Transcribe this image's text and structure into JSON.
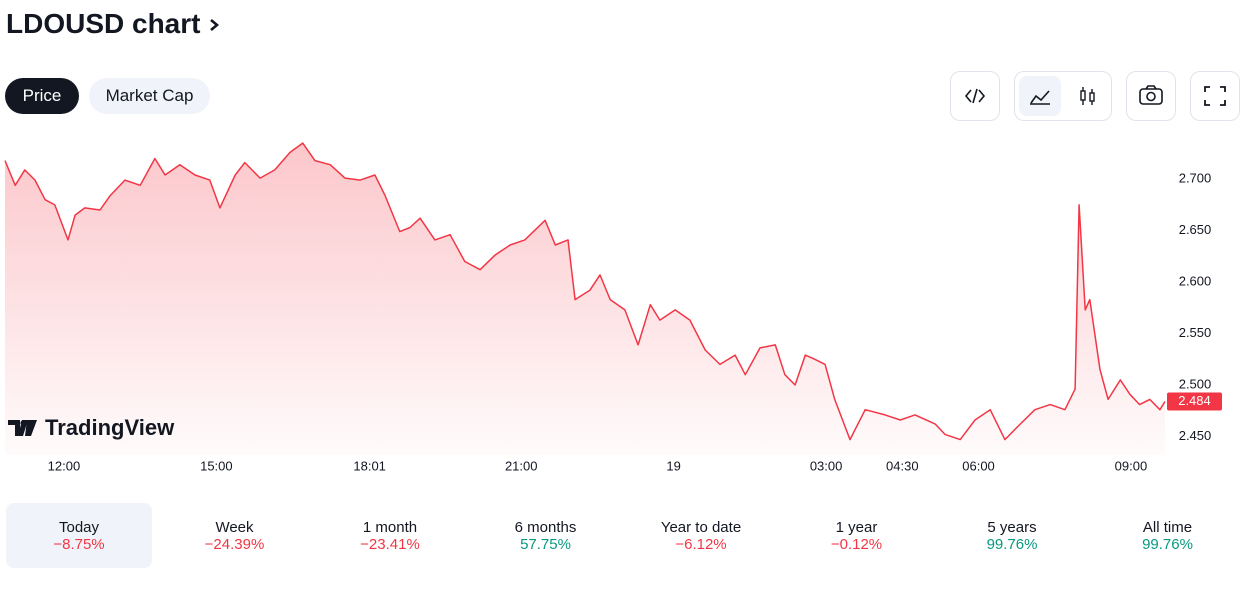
{
  "header": {
    "title": "LDOUSD chart"
  },
  "tabs": [
    {
      "label": "Price",
      "active": true
    },
    {
      "label": "Market Cap",
      "active": false
    }
  ],
  "chart_data": {
    "type": "area",
    "color": "#f23645",
    "watermark": "TradingView",
    "x": [
      10.84,
      11.04,
      11.23,
      11.43,
      11.63,
      11.82,
      12.08,
      12.22,
      12.41,
      12.71,
      12.91,
      13.2,
      13.5,
      13.79,
      13.99,
      14.28,
      14.58,
      14.87,
      15.07,
      15.37,
      15.56,
      15.86,
      16.15,
      16.45,
      16.7,
      16.94,
      17.24,
      17.53,
      17.83,
      18.12,
      18.32,
      18.61,
      18.81,
      19.01,
      19.3,
      19.6,
      19.89,
      20.19,
      20.48,
      20.78,
      21.07,
      21.47,
      21.67,
      21.92,
      22.06,
      22.35,
      22.55,
      22.75,
      23.04,
      23.3,
      23.54,
      23.73,
      24.03,
      24.32,
      24.62,
      24.91,
      25.21,
      25.41,
      25.7,
      26.0,
      26.19,
      26.39,
      26.59,
      26.78,
      26.98,
      27.17,
      27.47,
      27.77,
      28.16,
      28.46,
      28.75,
      29.15,
      29.34,
      29.64,
      29.93,
      30.23,
      30.52,
      30.82,
      31.11,
      31.41,
      31.7,
      31.9,
      31.98,
      32.1,
      32.19,
      32.39,
      32.55,
      32.79,
      32.98,
      33.17,
      33.37,
      33.57,
      33.67
    ],
    "values": [
      2.718,
      2.694,
      2.709,
      2.699,
      2.68,
      2.675,
      2.641,
      2.665,
      2.672,
      2.67,
      2.684,
      2.699,
      2.694,
      2.72,
      2.704,
      2.714,
      2.704,
      2.699,
      2.672,
      2.704,
      2.716,
      2.701,
      2.709,
      2.726,
      2.735,
      2.718,
      2.714,
      2.701,
      2.699,
      2.704,
      2.684,
      2.649,
      2.653,
      2.662,
      2.641,
      2.646,
      2.62,
      2.612,
      2.626,
      2.636,
      2.641,
      2.66,
      2.636,
      2.641,
      2.583,
      2.592,
      2.607,
      2.583,
      2.573,
      2.539,
      2.578,
      2.563,
      2.573,
      2.563,
      2.534,
      2.52,
      2.529,
      2.51,
      2.536,
      2.539,
      2.51,
      2.5,
      2.529,
      2.525,
      2.52,
      2.486,
      2.447,
      2.476,
      2.471,
      2.466,
      2.471,
      2.462,
      2.452,
      2.447,
      2.466,
      2.476,
      2.447,
      2.462,
      2.476,
      2.481,
      2.476,
      2.496,
      2.675,
      2.573,
      2.583,
      2.515,
      2.486,
      2.505,
      2.491,
      2.481,
      2.486,
      2.476,
      2.484
    ],
    "xlim": [
      10.84,
      33.67
    ],
    "xticks": [
      {
        "value": 12,
        "label": "12:00"
      },
      {
        "value": 15,
        "label": "15:00"
      },
      {
        "value": 18.0167,
        "label": "18:01"
      },
      {
        "value": 21,
        "label": "21:00"
      },
      {
        "value": 24,
        "label": "19"
      },
      {
        "value": 27,
        "label": "03:00"
      },
      {
        "value": 28.5,
        "label": "04:30"
      },
      {
        "value": 30,
        "label": "06:00"
      },
      {
        "value": 33,
        "label": "09:00"
      }
    ],
    "ylim": [
      2.432,
      2.738
    ],
    "yticks": [
      {
        "value": 2.45,
        "label": "2.450"
      },
      {
        "value": 2.5,
        "label": "2.500"
      },
      {
        "value": 2.55,
        "label": "2.550"
      },
      {
        "value": 2.6,
        "label": "2.600"
      },
      {
        "value": 2.65,
        "label": "2.650"
      },
      {
        "value": 2.7,
        "label": "2.700"
      }
    ],
    "last_value": 2.484
  },
  "periods": [
    {
      "label": "Today",
      "change": "−8.75%",
      "color": "#f23645",
      "selected": true
    },
    {
      "label": "Week",
      "change": "−24.39%",
      "color": "#f23645",
      "selected": false
    },
    {
      "label": "1 month",
      "change": "−23.41%",
      "color": "#f23645",
      "selected": false
    },
    {
      "label": "6 months",
      "change": "57.75%",
      "color": "#089981",
      "selected": false
    },
    {
      "label": "Year to date",
      "change": "−6.12%",
      "color": "#f23645",
      "selected": false
    },
    {
      "label": "1 year",
      "change": "−0.12%",
      "color": "#f23645",
      "selected": false
    },
    {
      "label": "5 years",
      "change": "99.76%",
      "color": "#089981",
      "selected": false
    },
    {
      "label": "All time",
      "change": "99.76%",
      "color": "#089981",
      "selected": false
    }
  ]
}
